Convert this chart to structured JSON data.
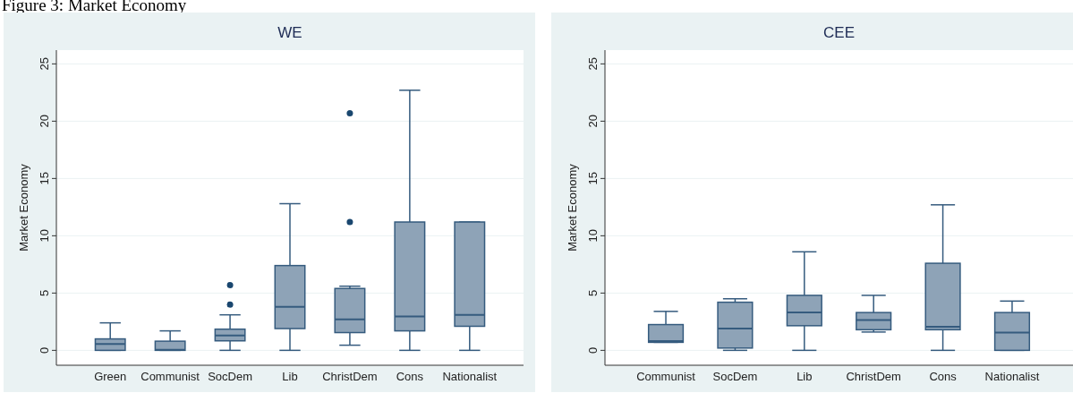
{
  "chart_data": [
    {
      "type": "box",
      "title": "WE",
      "ylabel": "Market Economy",
      "annotations": [
        "Figure 3: Market Economy"
      ],
      "categories": [
        "Green",
        "Communist",
        "SocDem",
        "Lib",
        "ChristDem",
        "Cons",
        "Nationalist"
      ],
      "color": "#8ea3b7",
      "ylim": [
        -1.3,
        26.2
      ],
      "yticks": [
        0,
        5,
        10,
        15,
        20,
        25
      ],
      "grid": "y",
      "boxes": [
        {
          "low": 0,
          "q1": 0,
          "median": 0.55,
          "q3": 1.0,
          "high": 2.4
        },
        {
          "low": 0,
          "q1": 0,
          "median": 0.05,
          "q3": 0.8,
          "high": 1.7
        },
        {
          "low": 0,
          "q1": 0.83,
          "median": 1.3,
          "q3": 1.85,
          "high": 3.1,
          "outliers": [
            4.0,
            5.7
          ]
        },
        {
          "low": 0,
          "q1": 1.9,
          "median": 3.8,
          "q3": 7.4,
          "high": 12.8
        },
        {
          "low": 0.45,
          "q1": 1.55,
          "median": 2.7,
          "q3": 5.4,
          "high": 5.6,
          "outliers": [
            11.2,
            20.7
          ]
        },
        {
          "low": 0,
          "q1": 1.7,
          "median": 2.95,
          "q3": 11.2,
          "high": 22.7
        },
        {
          "low": 0,
          "q1": 2.1,
          "median": 3.1,
          "q3": 11.2,
          "high": 11.2
        }
      ]
    },
    {
      "type": "box",
      "title": "CEE",
      "ylabel": "Market Economy",
      "categories": [
        "Communist",
        "SocDem",
        "Lib",
        "ChristDem",
        "Cons",
        "Nationalist"
      ],
      "color": "#8ea3b7",
      "ylim": [
        -1.3,
        26.2
      ],
      "yticks": [
        0,
        5,
        10,
        15,
        20,
        25
      ],
      "grid": "y",
      "boxes": [
        {
          "low": 0.7,
          "q1": 0.7,
          "median": 0.8,
          "q3": 2.25,
          "high": 3.4
        },
        {
          "low": 0,
          "q1": 0.2,
          "median": 1.9,
          "q3": 4.2,
          "high": 4.5
        },
        {
          "low": 0,
          "q1": 2.15,
          "median": 3.3,
          "q3": 4.8,
          "high": 8.6
        },
        {
          "low": 1.6,
          "q1": 1.8,
          "median": 2.65,
          "q3": 3.3,
          "high": 4.8
        },
        {
          "low": 0,
          "q1": 1.8,
          "median": 2.05,
          "q3": 7.6,
          "high": 12.7
        },
        {
          "low": 0,
          "q1": 0,
          "median": 1.55,
          "q3": 3.3,
          "high": 4.3
        }
      ]
    }
  ]
}
